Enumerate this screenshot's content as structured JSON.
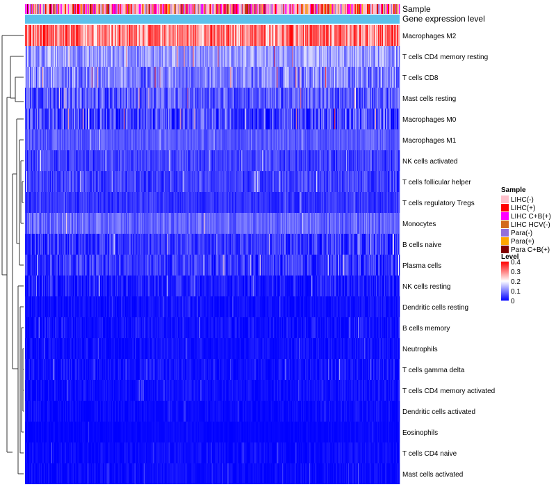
{
  "chart_data": {
    "type": "heatmap",
    "title": "",
    "annotation_tracks": [
      "Sample",
      "Gene expression level"
    ],
    "rows": [
      {
        "name": "Macrophages M2",
        "mean": 0.3,
        "spread": 0.1
      },
      {
        "name": "T cells CD4 memory resting",
        "mean": 0.12,
        "spread": 0.06
      },
      {
        "name": "T cells CD8",
        "mean": 0.1,
        "spread": 0.07
      },
      {
        "name": "Mast cells resting",
        "mean": 0.07,
        "spread": 0.06
      },
      {
        "name": "Macrophages M0",
        "mean": 0.05,
        "spread": 0.08
      },
      {
        "name": "Macrophages M1",
        "mean": 0.07,
        "spread": 0.03
      },
      {
        "name": "NK cells activated",
        "mean": 0.05,
        "spread": 0.04
      },
      {
        "name": "T cells follicular helper",
        "mean": 0.05,
        "spread": 0.04
      },
      {
        "name": "T cells regulatory  Tregs",
        "mean": 0.04,
        "spread": 0.03
      },
      {
        "name": "Monocytes",
        "mean": 0.08,
        "spread": 0.04
      },
      {
        "name": "B cells naive",
        "mean": 0.04,
        "spread": 0.05
      },
      {
        "name": "Plasma cells",
        "mean": 0.04,
        "spread": 0.05
      },
      {
        "name": "NK cells resting",
        "mean": 0.02,
        "spread": 0.04
      },
      {
        "name": "Dendritic cells resting",
        "mean": 0.01,
        "spread": 0.02
      },
      {
        "name": "B cells memory",
        "mean": 0.01,
        "spread": 0.03
      },
      {
        "name": "Neutrophils",
        "mean": 0.01,
        "spread": 0.02
      },
      {
        "name": "T cells gamma delta",
        "mean": 0.01,
        "spread": 0.03
      },
      {
        "name": "T cells CD4 memory activated",
        "mean": 0.01,
        "spread": 0.02
      },
      {
        "name": "Dendritic cells activated",
        "mean": 0.005,
        "spread": 0.02
      },
      {
        "name": "Eosinophils",
        "mean": 0.003,
        "spread": 0.01
      },
      {
        "name": "T cells CD4 naive",
        "mean": 0.004,
        "spread": 0.02
      },
      {
        "name": "Mast cells activated",
        "mean": 0.004,
        "spread": 0.02
      }
    ],
    "legend_sample": {
      "title": "Sample",
      "items": [
        {
          "label": "LIHC(-)",
          "color": "#ffc0cb"
        },
        {
          "label": "LIHC(+)",
          "color": "#ff0000"
        },
        {
          "label": "LIHC C+B(+)",
          "color": "#ff00ff"
        },
        {
          "label": "LIHC HCV(-)",
          "color": "#d2691e"
        },
        {
          "label": "Para(-)",
          "color": "#9370db"
        },
        {
          "label": "Para(+)",
          "color": "#ffa500"
        },
        {
          "label": "Para C+B(+)",
          "color": "#800000"
        }
      ]
    },
    "legend_level": {
      "title": "Level",
      "ticks": [
        "0.4",
        "0.3",
        "0.2",
        "0.1",
        "0"
      ],
      "tick_values": [
        0.4,
        0.3,
        0.2,
        0.1,
        0
      ],
      "range": [
        0,
        0.4
      ],
      "colors": [
        "#0000ff",
        "#ffffff",
        "#ff0000"
      ]
    },
    "gene_expression_color": "#5bc0eb"
  }
}
